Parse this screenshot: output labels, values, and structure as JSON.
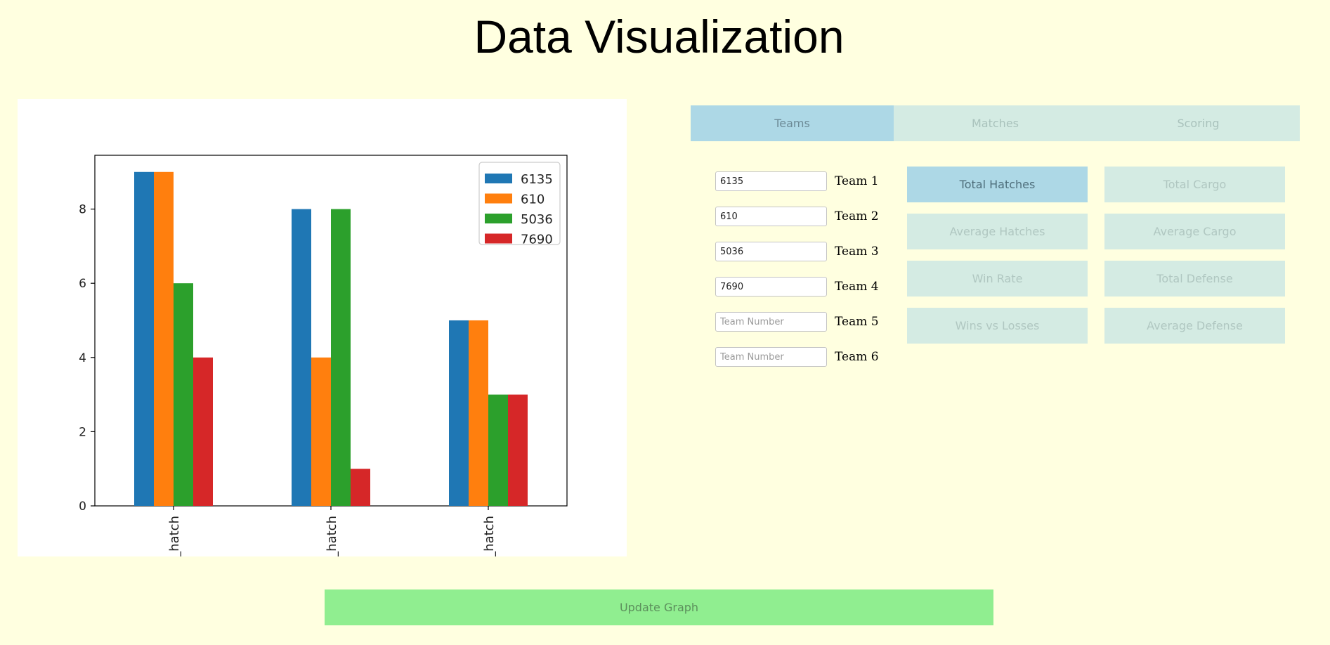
{
  "page": {
    "title": "Data Visualization"
  },
  "tabs": [
    {
      "label": "Teams",
      "active": true
    },
    {
      "label": "Matches",
      "active": false
    },
    {
      "label": "Scoring",
      "active": false
    }
  ],
  "teams": [
    {
      "label": "Team 1",
      "value": "6135",
      "placeholder": "Team Number"
    },
    {
      "label": "Team 2",
      "value": "610",
      "placeholder": "Team Number"
    },
    {
      "label": "Team 3",
      "value": "5036",
      "placeholder": "Team Number"
    },
    {
      "label": "Team 4",
      "value": "7690",
      "placeholder": "Team Number"
    },
    {
      "label": "Team 5",
      "value": "",
      "placeholder": "Team Number"
    },
    {
      "label": "Team 6",
      "value": "",
      "placeholder": "Team Number"
    }
  ],
  "metrics": [
    {
      "label": "Total Hatches",
      "active": true
    },
    {
      "label": "Total Cargo",
      "active": false
    },
    {
      "label": "Average Hatches",
      "active": false
    },
    {
      "label": "Average Cargo",
      "active": false
    },
    {
      "label": "Win Rate",
      "active": false
    },
    {
      "label": "Total Defense",
      "active": false
    },
    {
      "label": "Wins vs Losses",
      "active": false
    },
    {
      "label": "Average Defense",
      "active": false
    }
  ],
  "update_button": {
    "label": "Update Graph"
  },
  "colors": {
    "background": "#ffffe0",
    "tab_active": "#add8e6",
    "tab_inactive": "#d4ebe3",
    "update_button": "#90ee90"
  },
  "chart_data": {
    "type": "bar",
    "categories": [
      "_hatch",
      "_hatch",
      "_hatch"
    ],
    "series": [
      {
        "name": "6135",
        "color": "#1f77b4",
        "values": [
          9,
          8,
          5
        ]
      },
      {
        "name": "610",
        "color": "#ff7f0e",
        "values": [
          9,
          4,
          5
        ]
      },
      {
        "name": "5036",
        "color": "#2ca02c",
        "values": [
          6,
          8,
          3
        ]
      },
      {
        "name": "7690",
        "color": "#d62728",
        "values": [
          4,
          1,
          3
        ]
      }
    ],
    "yticks": [
      "0",
      "2",
      "4",
      "6",
      "8"
    ],
    "ylim": [
      0,
      9.45
    ],
    "legend": "top-right",
    "grid": false
  }
}
